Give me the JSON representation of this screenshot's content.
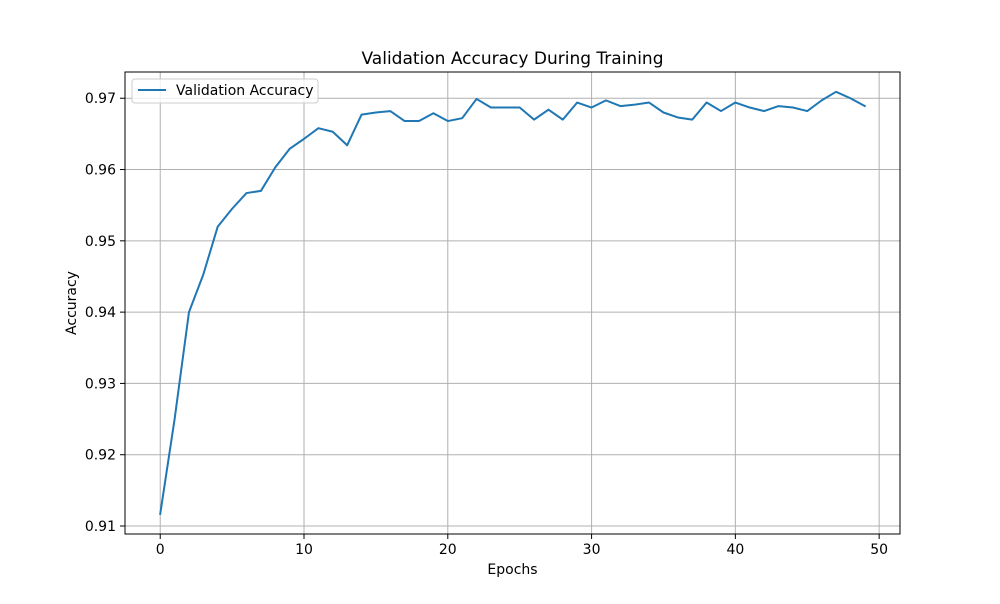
{
  "chart_data": {
    "type": "line",
    "title": "Validation Accuracy During Training",
    "xlabel": "Epochs",
    "ylabel": "Accuracy",
    "xlim": [
      -2.45,
      51.45
    ],
    "ylim": [
      0.90888,
      0.97368
    ],
    "xticks": [
      0,
      10,
      20,
      30,
      40,
      50
    ],
    "xtick_labels": [
      "0",
      "10",
      "20",
      "30",
      "40",
      "50"
    ],
    "yticks": [
      0.91,
      0.92,
      0.93,
      0.94,
      0.95,
      0.96,
      0.97
    ],
    "ytick_labels": [
      "0.91",
      "0.92",
      "0.93",
      "0.94",
      "0.95",
      "0.96",
      "0.97"
    ],
    "grid": true,
    "legend": {
      "position": "upper-left"
    },
    "x": [
      0,
      1,
      2,
      3,
      4,
      5,
      6,
      7,
      8,
      9,
      10,
      11,
      12,
      13,
      14,
      15,
      16,
      17,
      18,
      19,
      20,
      21,
      22,
      23,
      24,
      25,
      26,
      27,
      28,
      29,
      30,
      31,
      32,
      33,
      34,
      35,
      36,
      37,
      38,
      39,
      40,
      41,
      42,
      43,
      44,
      45,
      46,
      47,
      48,
      49
    ],
    "series": [
      {
        "name": "Validation Accuracy",
        "color": "#1f77b4",
        "values": [
          0.9117,
          0.925,
          0.94,
          0.9453,
          0.952,
          0.9545,
          0.9567,
          0.957,
          0.9603,
          0.9629,
          0.9643,
          0.9658,
          0.9653,
          0.9634,
          0.9677,
          0.968,
          0.9682,
          0.9668,
          0.9668,
          0.9679,
          0.9668,
          0.9672,
          0.9699,
          0.9687,
          0.9687,
          0.9687,
          0.967,
          0.9684,
          0.967,
          0.9694,
          0.9687,
          0.9697,
          0.9689,
          0.9691,
          0.9694,
          0.968,
          0.9673,
          0.967,
          0.9694,
          0.9682,
          0.9694,
          0.9687,
          0.9682,
          0.9689,
          0.9687,
          0.9682,
          0.9697,
          0.9709,
          0.97,
          0.9689
        ]
      }
    ]
  }
}
